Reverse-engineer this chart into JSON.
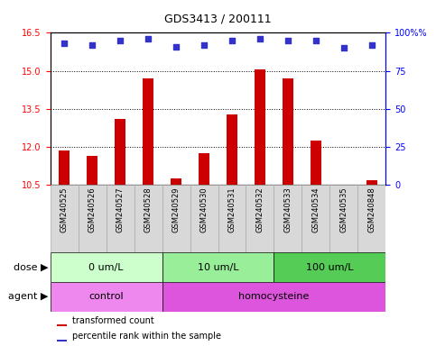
{
  "title": "GDS3413 / 200111",
  "samples": [
    "GSM240525",
    "GSM240526",
    "GSM240527",
    "GSM240528",
    "GSM240529",
    "GSM240530",
    "GSM240531",
    "GSM240532",
    "GSM240533",
    "GSM240534",
    "GSM240535",
    "GSM240848"
  ],
  "transformed_count": [
    11.85,
    11.65,
    13.1,
    14.7,
    10.75,
    11.75,
    13.3,
    15.05,
    14.7,
    12.25,
    10.5,
    10.7
  ],
  "percentile_rank": [
    93,
    92,
    95,
    96,
    91,
    92,
    95,
    96,
    95,
    95,
    90,
    92
  ],
  "ylim_left": [
    10.5,
    16.5
  ],
  "ylim_right": [
    0,
    100
  ],
  "yticks_left": [
    10.5,
    12.0,
    13.5,
    15.0,
    16.5
  ],
  "yticks_right": [
    0,
    25,
    50,
    75,
    100
  ],
  "bar_color": "#cc0000",
  "dot_color": "#3333cc",
  "bar_bottom": 10.5,
  "dose_groups": [
    {
      "label": "0 um/L",
      "start": 0,
      "end": 4,
      "color": "#ccffcc"
    },
    {
      "label": "10 um/L",
      "start": 4,
      "end": 8,
      "color": "#99ee99"
    },
    {
      "label": "100 um/L",
      "start": 8,
      "end": 12,
      "color": "#55cc55"
    }
  ],
  "agent_groups": [
    {
      "label": "control",
      "start": 0,
      "end": 4,
      "color": "#ee88ee"
    },
    {
      "label": "homocysteine",
      "start": 4,
      "end": 12,
      "color": "#dd55dd"
    }
  ],
  "dose_label": "dose",
  "agent_label": "agent",
  "legend_bar_label": "transformed count",
  "legend_dot_label": "percentile rank within the sample",
  "bar_width": 0.4,
  "dot_size": 18,
  "title_fontsize": 9,
  "tick_fontsize": 7,
  "sample_label_fontsize": 6,
  "row_label_fontsize": 8,
  "legend_fontsize": 7
}
